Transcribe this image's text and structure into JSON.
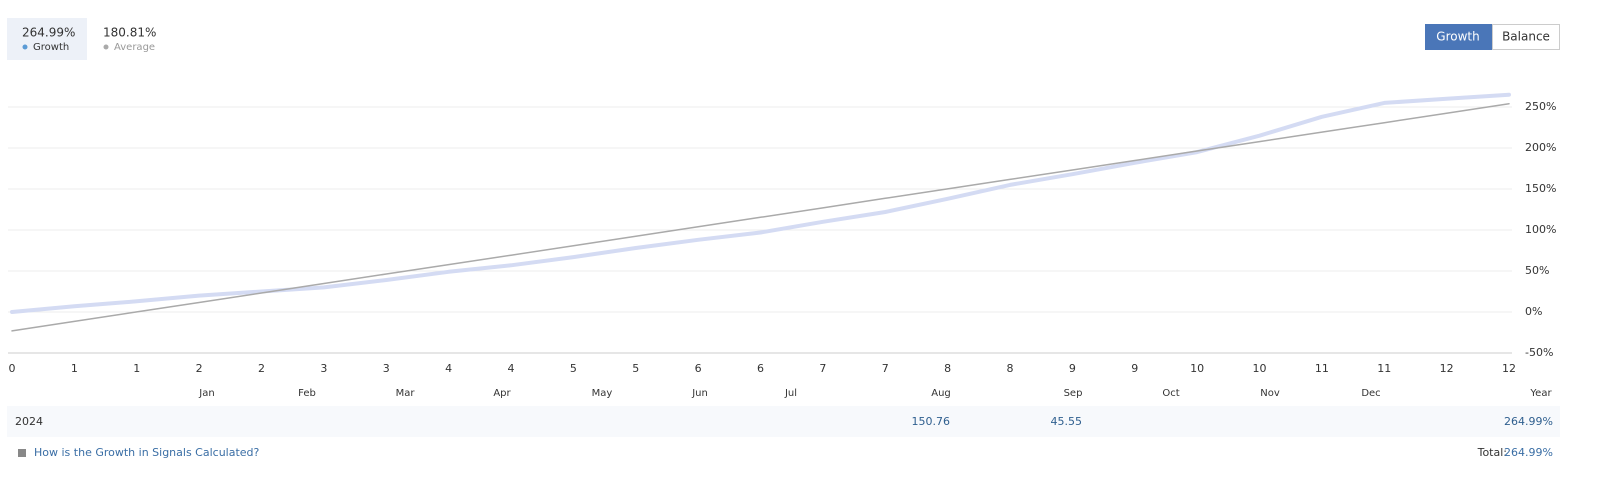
{
  "summary": [
    {
      "value": "264.99%"
    },
    {
      "value": "180.81%"
    }
  ],
  "buttons": [
    "Growth",
    "Balance"
  ],
  "chart_data": {
    "type": "line",
    "categories": [
      "0",
      "1",
      "1",
      "2",
      "2",
      "3",
      "3",
      "4",
      "4",
      "5",
      "5",
      "6",
      "6",
      "7",
      "7",
      "8",
      "8",
      "9",
      "9",
      "10",
      "10",
      "11",
      "11",
      "12",
      "12"
    ],
    "ylim": [
      -50,
      275
    ],
    "yticks": [
      {
        "value": -50,
        "label": "-50%"
      },
      {
        "value": 0,
        "label": "0%"
      },
      {
        "value": 50,
        "label": "50%"
      },
      {
        "value": 100,
        "label": "100%"
      },
      {
        "value": 150,
        "label": "150%"
      },
      {
        "value": 200,
        "label": "200%"
      },
      {
        "value": 250,
        "label": "250%"
      }
    ],
    "grid": true,
    "series": [
      {
        "name": "Growth",
        "color": "#d4dbf3",
        "values": [
          0,
          7,
          13,
          20,
          25,
          30,
          39,
          49,
          57,
          67,
          78,
          88,
          97,
          110,
          122,
          138,
          155,
          168,
          182,
          195,
          215,
          238,
          255,
          260,
          264.99
        ]
      },
      {
        "name": "Average",
        "color": "#aaaaaa",
        "values": [
          -23,
          -11.5,
          0.1,
          11.6,
          23.2,
          34.7,
          46.3,
          57.8,
          69.3,
          80.9,
          92.4,
          104,
          115.5,
          127,
          138.6,
          150.1,
          161.7,
          173.2,
          184.7,
          196.3,
          207.8,
          219.4,
          230.9,
          242.4,
          254
        ]
      }
    ]
  },
  "table": {
    "columns": [
      "Jan",
      "Feb",
      "Mar",
      "Apr",
      "May",
      "Jun",
      "Jul",
      "Aug",
      "Sep",
      "Oct",
      "Nov",
      "Dec",
      "Year"
    ],
    "rows": [
      [
        "2024",
        null,
        null,
        null,
        null,
        null,
        null,
        null,
        "150.76",
        "45.55",
        null,
        null,
        null,
        "264.99%"
      ]
    ]
  },
  "footer": {
    "link": "How is the Growth in Signals Calculated?",
    "total_label": "Total:",
    "total": "264.99%"
  }
}
